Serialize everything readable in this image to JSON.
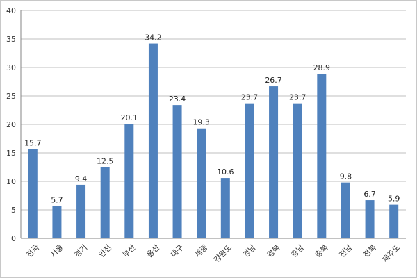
{
  "chart_data": {
    "type": "bar",
    "categories": [
      "전국",
      "서울",
      "경기",
      "인천",
      "부산",
      "울산",
      "대구",
      "세종",
      "강원도",
      "경남",
      "경북",
      "충남",
      "충북",
      "전남",
      "전북",
      "제주도"
    ],
    "values": [
      15.7,
      5.7,
      9.4,
      12.5,
      20.1,
      34.2,
      23.4,
      19.3,
      10.6,
      23.7,
      26.7,
      23.7,
      28.9,
      9.8,
      6.7,
      5.9
    ],
    "data_labels": [
      "15.7",
      "5.7",
      "9.4",
      "12.5",
      "20.1",
      "34.2",
      "23.4",
      "19.3",
      "10.6",
      "23.7",
      "26.7",
      "23.7",
      "28.9",
      "9.8",
      "6.7",
      "5.9"
    ],
    "yticks": [
      "0",
      "5",
      "10",
      "15",
      "20",
      "25",
      "30",
      "35",
      "40"
    ],
    "ylim": [
      0,
      40
    ],
    "grid": true,
    "bar_color": "#4f81bd",
    "grid_color": "#bfbfbf"
  }
}
